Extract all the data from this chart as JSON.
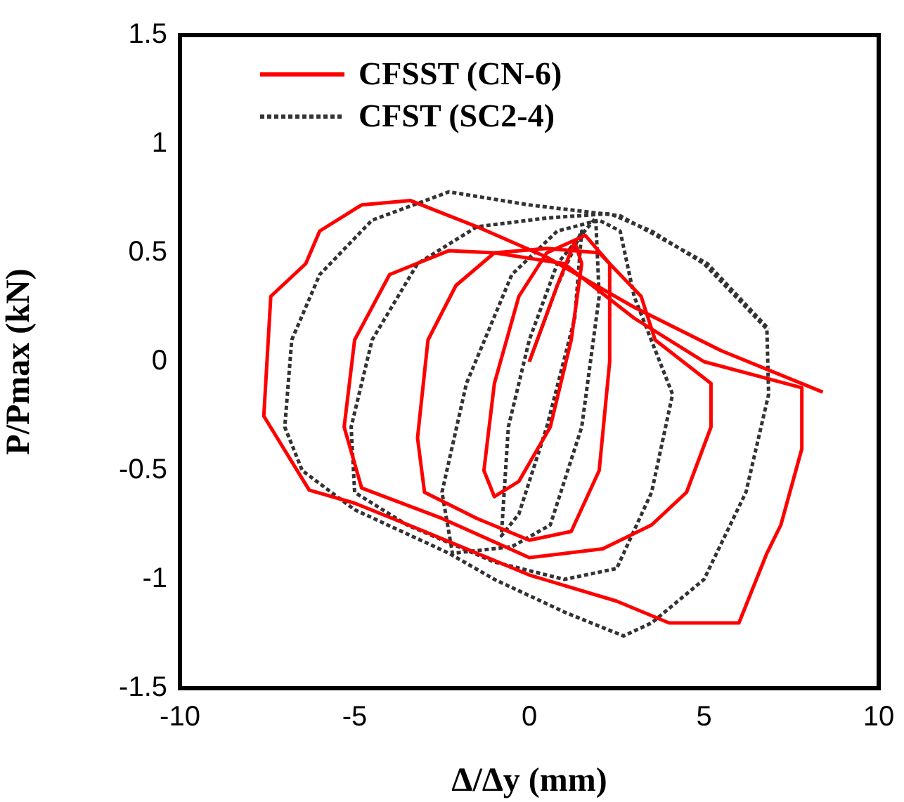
{
  "chart_data": {
    "type": "line",
    "xlabel": "Δ/Δy (mm)",
    "ylabel": "P/Pmax (kN)",
    "xlim": [
      -10,
      10
    ],
    "xticks": [
      -10,
      -5,
      0,
      5,
      10
    ],
    "ylim": [
      -1.5,
      1.5
    ],
    "yticks": [
      -1.5,
      -1,
      -0.5,
      0,
      0.5,
      1,
      1.5
    ],
    "grid": false,
    "legend": "top left",
    "marker": "none",
    "series": [
      {
        "name": "CFSST (CN-6)",
        "color": "#ff0000",
        "line_style": "solid",
        "x": [
          0,
          0.8,
          1.3,
          1.5,
          1.2,
          0.6,
          -0.3,
          -1.0,
          -1.3,
          -1.0,
          -0.3,
          0.5,
          1.6,
          2.3,
          2.3,
          2.0,
          1.2,
          0,
          -1.5,
          -3.0,
          -3.2,
          -2.9,
          -2.1,
          -1.0,
          0.5,
          2.0,
          3.2,
          3.6,
          5.2,
          5.2,
          4.5,
          3.5,
          2.1,
          0,
          -2.5,
          -4.8,
          -5.3,
          -5.0,
          -4.0,
          -2.3,
          -1.0,
          1.0,
          3.0,
          5.0,
          7.8,
          7.8,
          7.2,
          6.8,
          6.0,
          4.0,
          2.5,
          0,
          -3.0,
          -5.0,
          -6.3,
          -7.6,
          -7.4,
          -6.4,
          -6.0,
          -4.8,
          -3.4,
          -1.5,
          0.5,
          3.0,
          5.5,
          8.4
        ],
        "values": [
          0,
          0.35,
          0.55,
          0.45,
          0.1,
          -0.3,
          -0.55,
          -0.62,
          -0.5,
          -0.1,
          0.3,
          0.5,
          0.58,
          0.45,
          0,
          -0.5,
          -0.78,
          -0.82,
          -0.72,
          -0.6,
          -0.35,
          0.1,
          0.35,
          0.5,
          0.52,
          0.5,
          0.3,
          0.1,
          -0.1,
          -0.3,
          -0.6,
          -0.75,
          -0.86,
          -0.9,
          -0.72,
          -0.58,
          -0.3,
          0.1,
          0.4,
          0.51,
          0.5,
          0.45,
          0.2,
          0,
          -0.12,
          -0.4,
          -0.75,
          -0.88,
          -1.2,
          -1.2,
          -1.1,
          -0.98,
          -0.78,
          -0.65,
          -0.59,
          -0.25,
          0.3,
          0.45,
          0.6,
          0.72,
          0.74,
          0.62,
          0.48,
          0.25,
          0.05,
          -0.14
        ]
      },
      {
        "name": "CFST (SC2-4)",
        "color": "#333333",
        "line_style": "dotted",
        "x": [
          0,
          0.8,
          1.5,
          1.3,
          0.5,
          -0.3,
          -0.8,
          -0.6,
          0,
          0.8,
          1.9,
          2.0,
          1.5,
          0.6,
          -0.5,
          -2.2,
          -2.5,
          -1.8,
          -0.5,
          0.8,
          2.0,
          2.6,
          3.0,
          4.1,
          3.5,
          2.5,
          1.0,
          -1.0,
          -3.5,
          -5.0,
          -5.1,
          -4.5,
          -3.2,
          -1.5,
          0.5,
          2.3,
          3.5,
          5.0,
          6.8,
          6.85,
          6.2,
          5.0,
          3.5,
          2.7,
          1.0,
          -1.0,
          -2.3,
          -5.0,
          -6.5,
          -7.0,
          -6.8,
          -6.0,
          -4.5,
          -2.3,
          0,
          2.6,
          5.1,
          6.85
        ],
        "values": [
          0,
          0.35,
          0.6,
          0.2,
          -0.3,
          -0.7,
          -0.8,
          -0.3,
          0.1,
          0.45,
          0.66,
          0.3,
          -0.3,
          -0.75,
          -0.85,
          -0.88,
          -0.6,
          -0.1,
          0.4,
          0.6,
          0.65,
          0.6,
          0.3,
          -0.15,
          -0.6,
          -0.95,
          -1.0,
          -0.92,
          -0.75,
          -0.6,
          -0.3,
          0.1,
          0.45,
          0.62,
          0.66,
          0.68,
          0.6,
          0.45,
          0.15,
          -0.15,
          -0.6,
          -1.0,
          -1.2,
          -1.26,
          -1.15,
          -1.0,
          -0.88,
          -0.68,
          -0.5,
          -0.3,
          0.1,
          0.4,
          0.65,
          0.78,
          0.72,
          0.67,
          0.45,
          0.15
        ]
      }
    ]
  }
}
